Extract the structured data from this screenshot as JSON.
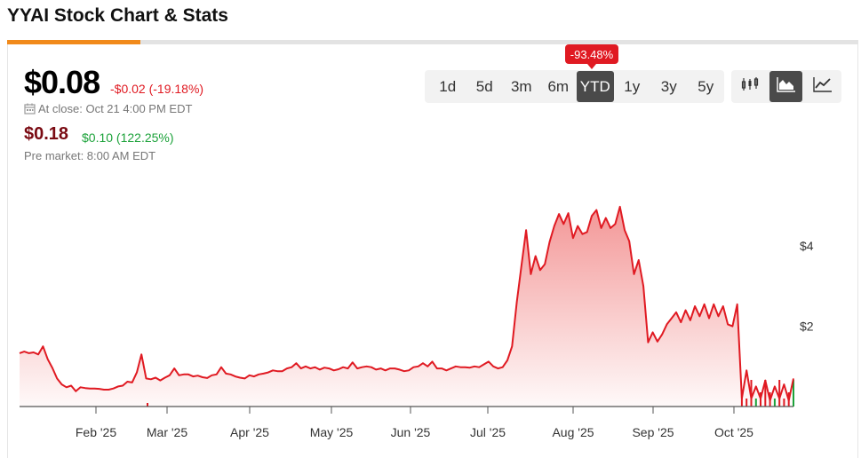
{
  "page": {
    "title": "YYAI Stock Chart & Stats"
  },
  "quote": {
    "price": "$0.08",
    "change": "-$0.02 (-19.18%)",
    "close_label": "At close: Oct 21 4:00 PM EDT",
    "premarket_price": "$0.18",
    "premarket_change": "$0.10 (122.25%)",
    "premarket_label": "Pre market: 8:00 AM EDT"
  },
  "ranges": {
    "items": [
      "1d",
      "5d",
      "3m",
      "6m",
      "YTD",
      "1y",
      "3y",
      "5y"
    ],
    "selected": "YTD",
    "badge": "-93.48%"
  },
  "chart_types": {
    "items": [
      "candlestick-chart-icon",
      "area-chart-icon",
      "line-chart-icon"
    ],
    "selected": "area-chart-icon"
  },
  "colors": {
    "accent": "#f18a1b",
    "negative": "#e01a22",
    "positive": "#1ca23a",
    "line": "#e01a22",
    "area_fill": "#f5a3a3"
  },
  "chart_data": {
    "type": "area",
    "title": "",
    "xlabel": "",
    "ylabel": "",
    "x_ticks": [
      "Feb '25",
      "Mar '25",
      "Apr '25",
      "May '25",
      "Jun '25",
      "Jul '25",
      "Aug '25",
      "Sep '25",
      "Oct '25"
    ],
    "y_ticks": [
      "$2",
      "$4"
    ],
    "y_tick_values": [
      2,
      4
    ],
    "ylim": [
      0,
      5.2
    ],
    "series": [
      {
        "values": [
          1.33,
          1.37,
          1.33,
          1.35,
          1.3,
          1.5,
          1.18,
          0.96,
          0.7,
          0.55,
          0.48,
          0.52,
          0.38,
          0.48,
          0.46,
          0.45,
          0.45,
          0.44,
          0.42,
          0.42,
          0.45,
          0.5,
          0.52,
          0.62,
          0.6,
          0.85,
          1.3,
          0.7,
          0.68,
          0.72,
          0.65,
          0.72,
          0.78,
          0.95,
          0.78,
          0.8,
          0.8,
          0.75,
          0.77,
          0.73,
          0.71,
          0.78,
          0.8,
          0.98,
          0.82,
          0.8,
          0.75,
          0.72,
          0.7,
          0.78,
          0.75,
          0.8,
          0.82,
          0.85,
          0.9,
          0.88,
          0.88,
          0.95,
          0.98,
          1.08,
          0.95,
          1.0,
          0.95,
          0.98,
          0.92,
          0.97,
          0.95,
          0.9,
          0.93,
          0.98,
          0.95,
          1.1,
          0.95,
          0.98,
          1.0,
          0.98,
          0.92,
          0.95,
          0.9,
          0.95,
          0.95,
          0.92,
          0.88,
          0.9,
          0.98,
          1.0,
          1.08,
          1.0,
          1.12,
          0.95,
          0.95,
          0.9,
          0.95,
          1.0,
          0.98,
          0.98,
          0.97,
          1.0,
          0.98,
          1.05,
          1.12,
          1.0,
          0.95,
          0.98,
          1.15,
          1.5,
          2.6,
          3.5,
          4.4,
          3.3,
          3.75,
          3.4,
          3.55,
          4.1,
          4.5,
          4.8,
          4.55,
          4.82,
          4.2,
          4.5,
          4.3,
          4.35,
          4.75,
          4.9,
          4.45,
          4.7,
          4.45,
          4.55,
          4.98,
          4.4,
          4.12,
          3.3,
          3.65,
          3.0,
          1.6,
          1.85,
          1.62,
          1.8,
          2.05,
          2.2,
          2.35,
          2.1,
          2.4,
          2.15,
          2.5,
          2.25,
          2.55,
          2.2,
          2.55,
          2.25,
          2.5,
          2.05,
          2.0,
          2.55,
          0.2,
          0.9,
          0.2,
          0.5,
          0.2,
          0.65,
          0.15,
          0.5,
          0.2,
          0.55,
          0.15,
          0.7
        ]
      }
    ],
    "volume_bars": true,
    "grid": false
  }
}
